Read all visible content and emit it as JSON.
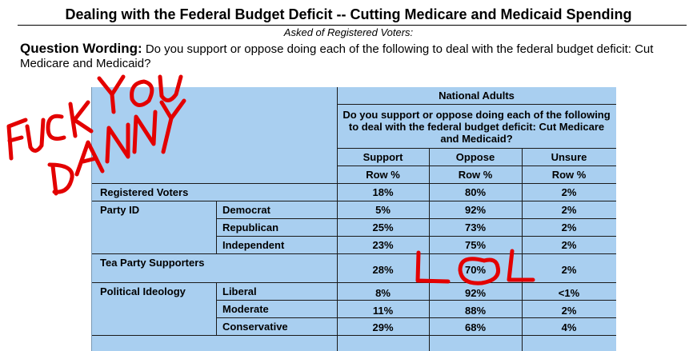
{
  "header": {
    "title": "Dealing with the Federal Budget Deficit -- Cutting Medicare and Medicaid Spending",
    "subtitle": "Asked of Registered Voters:",
    "question_label": "Question Wording:",
    "question_text": "Do you support or oppose doing each of the following to deal with the federal budget deficit: Cut Medicare and Medicaid?"
  },
  "table": {
    "group_header": "National Adults",
    "question_header": "Do you support or oppose doing each of the following to deal with the federal budget deficit: Cut Medicare and Medicaid?",
    "columns": [
      "Support",
      "Oppose",
      "Unsure"
    ],
    "units": [
      "Row %",
      "Row %",
      "Row %"
    ],
    "rows": [
      {
        "group": "Registered Voters",
        "sub": "",
        "values": [
          "18%",
          "80%",
          "2%"
        ]
      },
      {
        "group": "Party ID",
        "sub": "Democrat",
        "values": [
          "5%",
          "92%",
          "2%"
        ]
      },
      {
        "group": "",
        "sub": "Republican",
        "values": [
          "25%",
          "73%",
          "2%"
        ]
      },
      {
        "group": "",
        "sub": "Independent",
        "values": [
          "23%",
          "75%",
          "2%"
        ]
      },
      {
        "group": "Tea Party Supporters",
        "sub": "",
        "values": [
          "28%",
          "70%",
          "2%"
        ]
      },
      {
        "group": "Political Ideology",
        "sub": "Liberal",
        "values": [
          "8%",
          "92%",
          "<1%"
        ]
      },
      {
        "group": "",
        "sub": "Moderate",
        "values": [
          "11%",
          "88%",
          "2%"
        ]
      },
      {
        "group": "",
        "sub": "Conservative",
        "values": [
          "29%",
          "68%",
          "4%"
        ]
      }
    ]
  },
  "colors": {
    "table_bg": "#a9cff0",
    "ink": "#e30000"
  }
}
